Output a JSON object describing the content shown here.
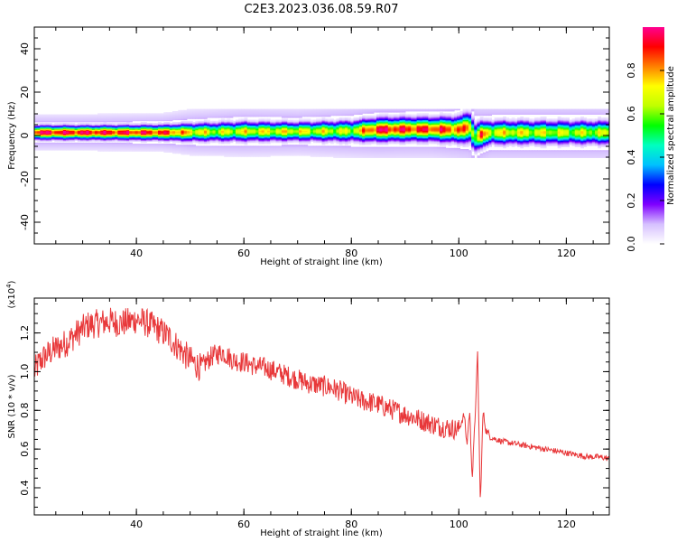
{
  "figure_title": "C2E3.2023.036.08.59.R07",
  "chart_data": [
    {
      "type": "heatmap",
      "xlabel": "Height of straight line (km)",
      "ylabel": "Frequency (Hz)",
      "xlim": [
        21,
        128
      ],
      "ylim": [
        -50,
        50
      ],
      "x_ticks": [
        "40",
        "60",
        "80",
        "100",
        "120"
      ],
      "y_ticks": [
        "-40",
        "-20",
        "0",
        "20",
        "40"
      ],
      "band_profile": {
        "x": [
          21,
          30,
          45,
          50,
          55,
          60,
          70,
          80,
          85,
          90,
          95,
          100,
          102,
          103,
          104,
          106,
          110,
          120,
          128
        ],
        "center_hz": [
          1.5,
          1.5,
          1.5,
          1.6,
          1.8,
          2.0,
          2.0,
          2.2,
          2.8,
          3.0,
          3.0,
          2.8,
          4.0,
          -1.0,
          0.5,
          1.5,
          1.5,
          1.5,
          1.5
        ],
        "halfwidth_hz": [
          3.0,
          3.0,
          3.2,
          3.8,
          4.0,
          4.2,
          4.0,
          4.5,
          5.0,
          5.0,
          5.0,
          5.5,
          6.5,
          6.5,
          5.5,
          5.0,
          5.0,
          5.0,
          5.0
        ],
        "peak_amplitude": [
          0.95,
          0.95,
          0.9,
          0.75,
          0.65,
          0.7,
          0.7,
          0.65,
          0.95,
          0.9,
          0.9,
          0.85,
          0.8,
          0.6,
          0.85,
          0.7,
          0.7,
          0.65,
          0.65
        ]
      },
      "colorbar": {
        "label": "Normalized spectral amplitude",
        "range": [
          0.0,
          1.0
        ],
        "ticks": [
          "0.0",
          "0.2",
          "0.4",
          "0.6",
          "0.8"
        ],
        "colors": [
          "#ffffff",
          "#d6c0ff",
          "#7f00ff",
          "#0000ff",
          "#00c0ff",
          "#00ffc0",
          "#00ff00",
          "#c0ff00",
          "#ffff00",
          "#ff8000",
          "#ff0000",
          "#ff0090"
        ]
      }
    },
    {
      "type": "line",
      "xlabel": "Height of straight line (km)",
      "ylabel": "SNR (10 * v/v)",
      "y_multiplier_label": "(x10",
      "y_multiplier_exp": "4",
      "y_multiplier_close": ")",
      "xlim": [
        21,
        128
      ],
      "ylim": [
        0.26,
        1.38
      ],
      "x_ticks": [
        "40",
        "60",
        "80",
        "100",
        "120"
      ],
      "y_ticks": [
        "0.4",
        "0.6",
        "0.8",
        "1.0",
        "1.2"
      ],
      "line_color": "#e8383a",
      "series": [
        {
          "x": [
            21,
            22,
            23,
            25,
            27,
            29,
            31,
            33,
            35,
            37,
            39,
            40,
            42,
            44,
            46,
            48,
            50,
            52,
            54,
            56,
            58,
            60,
            62,
            64,
            66,
            68,
            70,
            72,
            74,
            76,
            78,
            80,
            82,
            84,
            86,
            88,
            90,
            92,
            94,
            96,
            98,
            100,
            101,
            101.5,
            102,
            102.5,
            103,
            103.5,
            104,
            104.5,
            105,
            106,
            108,
            110,
            112,
            114,
            116,
            118,
            120,
            122,
            124,
            126,
            128
          ],
          "values": [
            1.0,
            1.05,
            1.08,
            1.12,
            1.15,
            1.2,
            1.24,
            1.25,
            1.26,
            1.25,
            1.26,
            1.27,
            1.25,
            1.22,
            1.18,
            1.12,
            1.06,
            1.02,
            1.08,
            1.1,
            1.06,
            1.05,
            1.03,
            1.02,
            1.0,
            0.98,
            0.96,
            0.94,
            0.93,
            0.92,
            0.9,
            0.87,
            0.85,
            0.84,
            0.82,
            0.8,
            0.78,
            0.76,
            0.74,
            0.72,
            0.71,
            0.7,
            0.78,
            0.62,
            0.8,
            0.45,
            0.75,
            1.1,
            0.3,
            0.8,
            0.7,
            0.66,
            0.64,
            0.63,
            0.62,
            0.61,
            0.6,
            0.59,
            0.58,
            0.57,
            0.56,
            0.56,
            0.55
          ]
        }
      ]
    }
  ]
}
